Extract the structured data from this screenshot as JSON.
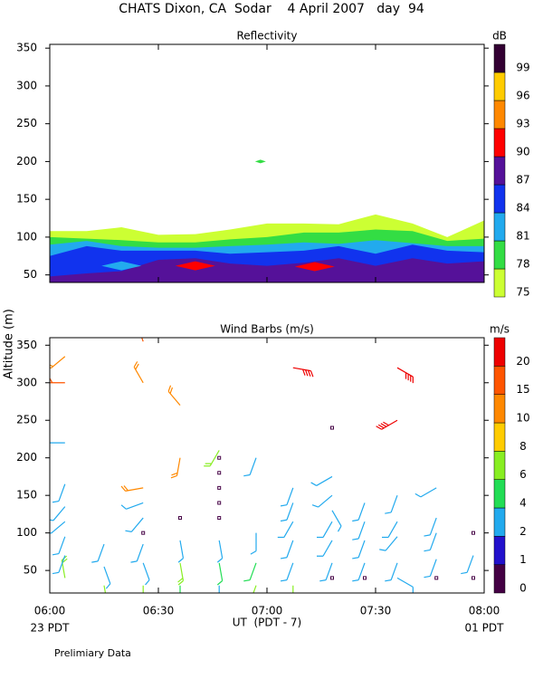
{
  "title": "CHATS Dixon, CA  Sodar    4 April 2007   day  94",
  "footnote": "Prelimiary Data",
  "chart_data": [
    {
      "type": "contour",
      "title": "Reflectivity",
      "x": [
        6,
        6.17,
        6.33,
        6.5,
        6.67,
        6.83,
        7,
        7.17,
        7.33,
        7.5,
        7.67,
        7.83,
        8
      ],
      "xlim": [
        6,
        8
      ],
      "ylim": [
        40,
        355
      ],
      "yticks": [
        50,
        100,
        150,
        200,
        250,
        300,
        350
      ],
      "layers": [
        {
          "level": 75,
          "top": [
            108,
            108,
            113,
            103,
            104,
            110,
            118,
            118,
            117,
            130,
            118,
            100,
            122
          ]
        },
        {
          "level": 78,
          "top": [
            100,
            98,
            96,
            93,
            93,
            97,
            100,
            106,
            106,
            110,
            108,
            95,
            98
          ]
        },
        {
          "level": 81,
          "top": [
            90,
            95,
            88,
            86,
            86,
            88,
            90,
            93,
            91,
            96,
            92,
            88,
            88
          ]
        },
        {
          "level": 84,
          "top": [
            75,
            88,
            82,
            82,
            82,
            78,
            80,
            82,
            88,
            78,
            90,
            82,
            80
          ]
        },
        {
          "level": 87,
          "top": [
            48,
            52,
            55,
            70,
            72,
            65,
            62,
            66,
            72,
            62,
            72,
            65,
            68
          ]
        }
      ],
      "patches": [
        {
          "level": 81,
          "x": 6.33,
          "y": 62
        },
        {
          "level": 90,
          "x": 6.67,
          "y": 62
        },
        {
          "level": 90,
          "x": 7.22,
          "y": 61
        },
        {
          "level": 78,
          "x": 6.97,
          "y": 200
        }
      ],
      "colorbar": {
        "label": "dB",
        "levels": [
          75,
          78,
          81,
          84,
          87,
          90,
          93,
          96,
          99
        ],
        "colors": [
          "#ccff33",
          "#33dd44",
          "#22aaee",
          "#1133ee",
          "#551199",
          "#ff0000",
          "#ff8800",
          "#ffcc00",
          "#330033"
        ]
      }
    },
    {
      "type": "barbs",
      "title": "Wind Barbs (m/s)",
      "ylabel": "Altitude (m)",
      "xlabel": "UT  (PDT - 7)",
      "start_label": "23 PDT",
      "end_label": "01 PDT",
      "xlim": [
        6,
        8
      ],
      "ylim": [
        20,
        360
      ],
      "xticks": [
        {
          "value": 6,
          "label": "06:00"
        },
        {
          "value": 6.5,
          "label": "06:30"
        },
        {
          "value": 7,
          "label": "07:00"
        },
        {
          "value": 7.5,
          "label": "07:30"
        },
        {
          "value": 8,
          "label": "08:00"
        }
      ],
      "yticks": [
        50,
        100,
        150,
        200,
        250,
        300,
        350
      ],
      "time": [
        6.07,
        6.07,
        6.07,
        6.07,
        6.07,
        6.07,
        6.07,
        6.07,
        6.07,
        6.25,
        6.25,
        6.25,
        6.43,
        6.43,
        6.43,
        6.43,
        6.43,
        6.43,
        6.43,
        6.43,
        6.43,
        6.6,
        6.6,
        6.6,
        6.6,
        6.6,
        6.6,
        6.78,
        6.78,
        6.78,
        6.78,
        6.78,
        6.78,
        6.78,
        6.78,
        6.78,
        6.95,
        6.95,
        6.95,
        6.95,
        7.12,
        7.12,
        7.12,
        7.12,
        7.12,
        7.12,
        7.12,
        7.3,
        7.3,
        7.3,
        7.3,
        7.3,
        7.3,
        7.3,
        7.3,
        7.45,
        7.45,
        7.45,
        7.45,
        7.45,
        7.6,
        7.6,
        7.6,
        7.6,
        7.6,
        7.6,
        7.6,
        7.78,
        7.78,
        7.78,
        7.78,
        7.78,
        7.95,
        7.95,
        7.95
      ],
      "altitude": [
        40,
        70,
        95,
        115,
        135,
        165,
        220,
        300,
        335,
        30,
        55,
        85,
        30,
        60,
        85,
        100,
        120,
        140,
        160,
        300,
        355,
        30,
        60,
        90,
        120,
        200,
        270,
        30,
        60,
        90,
        120,
        140,
        160,
        180,
        200,
        210,
        30,
        60,
        100,
        200,
        30,
        60,
        90,
        115,
        140,
        160,
        320,
        40,
        60,
        90,
        115,
        130,
        150,
        175,
        240,
        40,
        60,
        90,
        115,
        140,
        40,
        60,
        95,
        115,
        150,
        320,
        250,
        40,
        65,
        100,
        120,
        160,
        40,
        70,
        100
      ],
      "speed": [
        6,
        2,
        3,
        3,
        3,
        3,
        3,
        15,
        10,
        6,
        3,
        2,
        6,
        3,
        3,
        0.2,
        2,
        3,
        10,
        10,
        15,
        4,
        6,
        2,
        0.2,
        10,
        10,
        3,
        4,
        3,
        0.2,
        0.2,
        0.2,
        0.2,
        0.2,
        6,
        6,
        4,
        2,
        2,
        6,
        3,
        3,
        3,
        2,
        2,
        20,
        0.2,
        3,
        3,
        3,
        2,
        3,
        3,
        0.2,
        0.2,
        3,
        3,
        2,
        2,
        2,
        3,
        3,
        3,
        3,
        20,
        20,
        0.2,
        3,
        3,
        3,
        2,
        0.2,
        3,
        0.2
      ],
      "direction": [
        350,
        200,
        200,
        230,
        220,
        200,
        270,
        270,
        230,
        170,
        160,
        200,
        180,
        160,
        200,
        0,
        220,
        250,
        260,
        330,
        340,
        180,
        170,
        170,
        0,
        190,
        320,
        180,
        170,
        170,
        0,
        0,
        0,
        0,
        0,
        210,
        200,
        200,
        180,
        200,
        180,
        200,
        200,
        210,
        200,
        200,
        100,
        0,
        200,
        210,
        210,
        150,
        230,
        240,
        0,
        0,
        200,
        200,
        200,
        200,
        120,
        200,
        220,
        210,
        200,
        120,
        240,
        0,
        200,
        200,
        200,
        240,
        0,
        200,
        0
      ],
      "colorbar": {
        "label": "m/s",
        "levels": [
          0,
          1,
          2,
          4,
          6,
          8,
          10,
          15,
          20
        ],
        "colors": [
          "#440044",
          "#2211cc",
          "#22aaee",
          "#22dd55",
          "#88ee22",
          "#ffcc00",
          "#ff8800",
          "#ff5500",
          "#ee0000"
        ]
      }
    }
  ]
}
